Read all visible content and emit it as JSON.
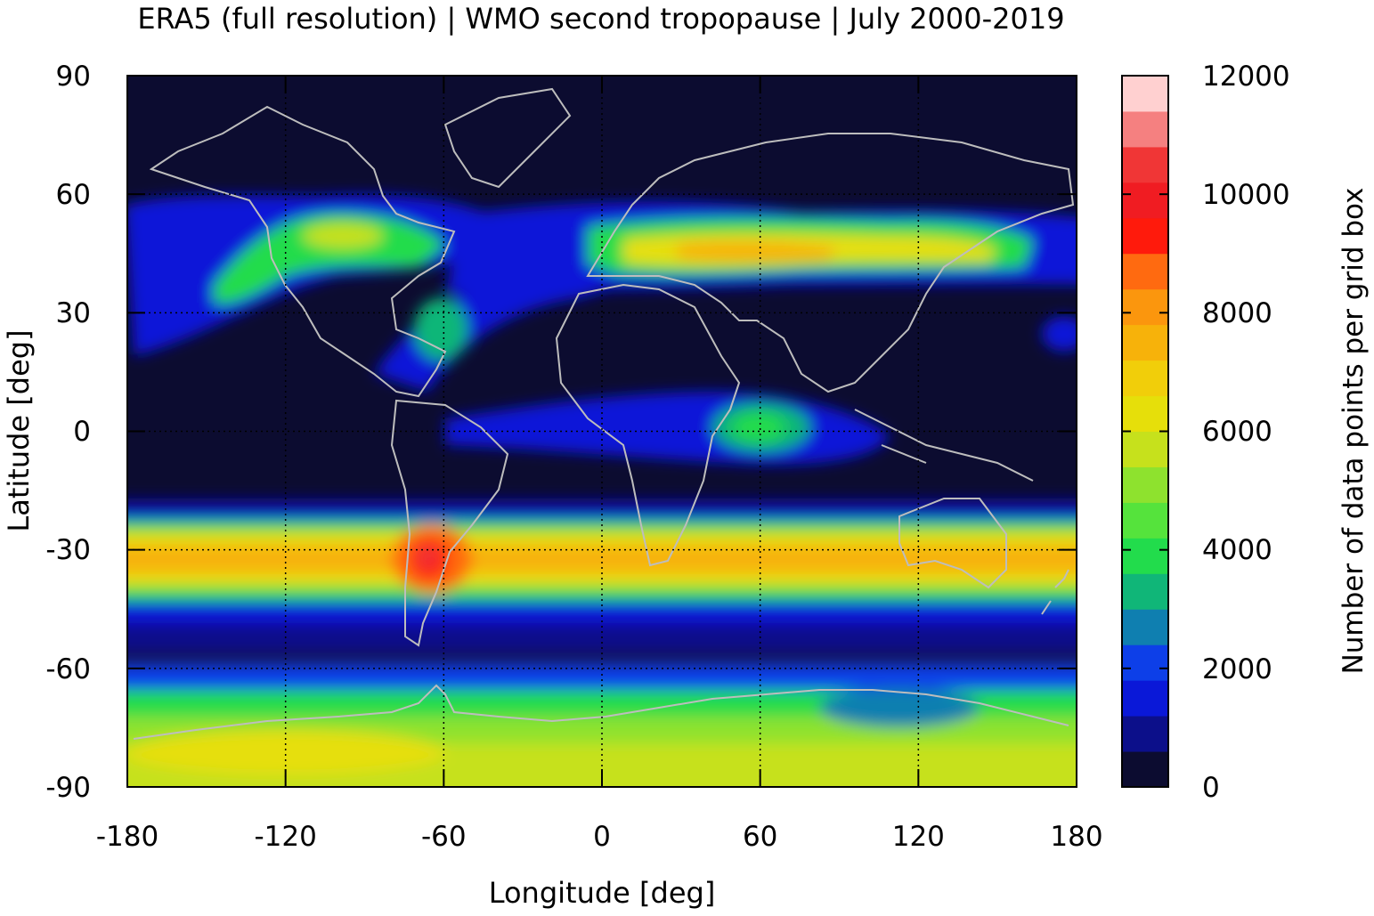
{
  "title": "ERA5 (full resolution) | WMO second tropopause | July 2000-2019",
  "xlabel": "Longitude [deg]",
  "ylabel": "Latitude [deg]",
  "colorbar_label": "Number of data points per grid box",
  "colors": {
    "background": "#0c0c30",
    "coastline": "#bdbdbd",
    "frame": "#000000"
  },
  "chart_data": {
    "type": "heatmap",
    "title": "ERA5 (full resolution) | WMO second tropopause | July 2000-2019",
    "xlabel": "Longitude [deg]",
    "ylabel": "Latitude [deg]",
    "xlim": [
      -180,
      180
    ],
    "ylim": [
      -90,
      90
    ],
    "x_ticks": [
      "-180",
      "-120",
      "-60",
      "0",
      "60",
      "120",
      "180"
    ],
    "y_ticks": [
      "90",
      "60",
      "30",
      "0",
      "-30",
      "-60",
      "-90"
    ],
    "x_tick_values": [
      -180,
      -120,
      -60,
      0,
      60,
      120,
      180
    ],
    "y_tick_values": [
      90,
      60,
      30,
      0,
      -30,
      -60,
      -90
    ],
    "grid_lines_dotted": {
      "x": [
        -120,
        -60,
        0,
        60,
        120
      ],
      "y": [
        60,
        30,
        0,
        -30,
        -60
      ]
    },
    "colorbar": {
      "label": "Number of data points per grid box",
      "range": [
        0,
        12000
      ],
      "tick_labels": [
        "0",
        "2000",
        "4000",
        "6000",
        "8000",
        "10000",
        "12000"
      ],
      "tick_values": [
        0,
        2000,
        4000,
        6000,
        8000,
        10000,
        12000
      ],
      "levels": [
        {
          "from": 0,
          "to": 600,
          "color": "#0c0c30"
        },
        {
          "from": 600,
          "to": 1200,
          "color": "#0c0f8a"
        },
        {
          "from": 1200,
          "to": 1800,
          "color": "#0a18d8"
        },
        {
          "from": 1800,
          "to": 2400,
          "color": "#0d3fe8"
        },
        {
          "from": 2400,
          "to": 3000,
          "color": "#0f7fb0"
        },
        {
          "from": 3000,
          "to": 3600,
          "color": "#10b678"
        },
        {
          "from": 3600,
          "to": 4200,
          "color": "#22dc4c"
        },
        {
          "from": 4200,
          "to": 4800,
          "color": "#55e33c"
        },
        {
          "from": 4800,
          "to": 5400,
          "color": "#8ee22e"
        },
        {
          "from": 5400,
          "to": 6000,
          "color": "#c6e11c"
        },
        {
          "from": 6000,
          "to": 6600,
          "color": "#e6df0a"
        },
        {
          "from": 6600,
          "to": 7200,
          "color": "#f1ce0a"
        },
        {
          "from": 7200,
          "to": 7800,
          "color": "#f7b20a"
        },
        {
          "from": 7800,
          "to": 8400,
          "color": "#fb960d"
        },
        {
          "from": 8400,
          "to": 9000,
          "color": "#ff6a10"
        },
        {
          "from": 9000,
          "to": 9600,
          "color": "#ff1a0c"
        },
        {
          "from": 9600,
          "to": 10200,
          "color": "#f01c22"
        },
        {
          "from": 10200,
          "to": 10800,
          "color": "#f03636"
        },
        {
          "from": 10800,
          "to": 11400,
          "color": "#f58080"
        },
        {
          "from": 11400,
          "to": 12000,
          "color": "#ffd0d0"
        }
      ]
    },
    "features": [
      {
        "name": "southern subtropical band",
        "lon": [
          -180,
          180
        ],
        "lat_center": -33,
        "peak_value": 8000
      },
      {
        "name": "South America maximum",
        "lon": -68,
        "lat": -32,
        "peak_value": 11000
      },
      {
        "name": "northern Eurasian band",
        "lon": [
          -10,
          120
        ],
        "lat_center": 45,
        "peak_value": 8000
      },
      {
        "name": "North Pacific / North America band",
        "lon": [
          -150,
          -80
        ],
        "lat_center": 45,
        "peak_value": 5000
      },
      {
        "name": "Indian Ocean equatorial maximum",
        "lon": 60,
        "lat": 1,
        "peak_value": 4000
      },
      {
        "name": "Antarctic plateau",
        "lat": [
          -90,
          -70
        ],
        "peak_value": 6500
      }
    ]
  }
}
